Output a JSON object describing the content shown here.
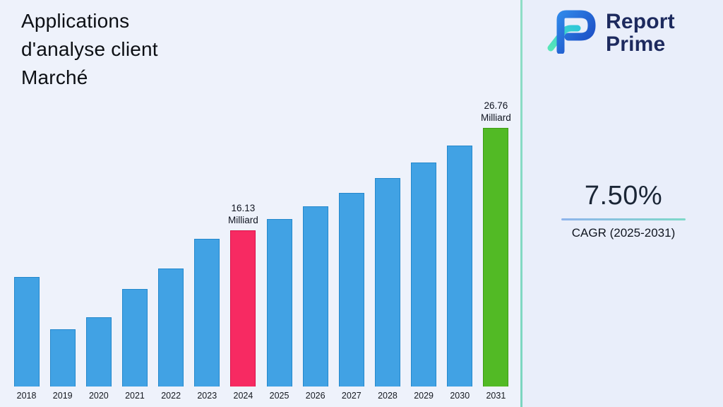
{
  "header": {
    "title": "Applications\nd'analyse client\nMarché"
  },
  "logo": {
    "line1": "Report",
    "line2": "Prime"
  },
  "stats": {
    "cagr_value": "7.50%",
    "cagr_label": "CAGR (2025-2031)"
  },
  "colors": {
    "background": "#eef2fb",
    "divider": "#7bd6c0",
    "bar_blue": "#41a2e4",
    "bar_pink": "#f72a62",
    "bar_green": "#52ba25",
    "navy": "#1d2a5e"
  },
  "chart_data": {
    "type": "bar",
    "title": "Applications d'analyse client Marché",
    "xlabel": "",
    "ylabel": "Milliard",
    "unit": "Milliard",
    "ylim": [
      0,
      28
    ],
    "grid": false,
    "legend": false,
    "categories": [
      "2018",
      "2019",
      "2020",
      "2021",
      "2022",
      "2023",
      "2024",
      "2025",
      "2026",
      "2027",
      "2028",
      "2029",
      "2030",
      "2031"
    ],
    "values": [
      11.3,
      5.9,
      7.2,
      10.1,
      12.2,
      15.3,
      16.13,
      17.34,
      18.64,
      20.04,
      21.55,
      23.16,
      24.9,
      26.76
    ],
    "bar_color": "#41a2e4",
    "bar_border": "#2488cc",
    "highlights": {
      "2024": {
        "color": "#f72a62",
        "border": "#d8134b"
      },
      "2031": {
        "color": "#52ba25",
        "border": "#3d9c15"
      }
    },
    "annotations": [
      {
        "category": "2024",
        "text": "16.13\nMilliard"
      },
      {
        "category": "2031",
        "text": "26.76\nMilliard"
      }
    ]
  }
}
